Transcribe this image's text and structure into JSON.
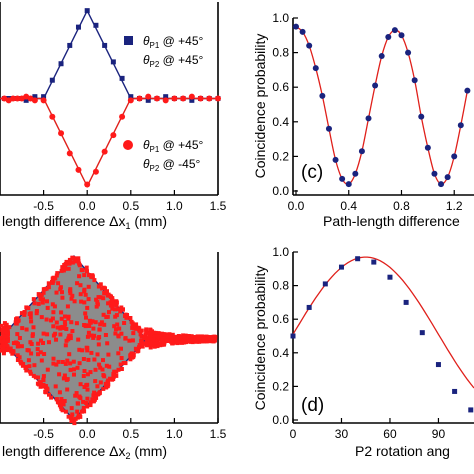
{
  "chart_data": [
    {
      "id": "a",
      "type": "scatter",
      "xlabel": "Path-length difference Δx₁ (mm)",
      "xlabel_visible": "length difference Δx₁ (mm)",
      "xlim": [
        -1.0,
        1.5
      ],
      "ylim": [
        0,
        1.0
      ],
      "xticks": [
        "-0.5",
        "0.0",
        "0.5",
        "1.0",
        "1.5"
      ],
      "legend": [
        {
          "marker": "square",
          "color": "#1a237e",
          "label_line1": "θP1 @ +45°",
          "label_line2": "θP2 @ +45°"
        },
        {
          "marker": "circle",
          "color": "#ff1a1a",
          "label_line1": "θP1 @ +45°",
          "label_line2": "θP2 @ -45°"
        }
      ],
      "series": [
        {
          "name": "θP1 @ +45°, θP2 @ +45°",
          "color": "#1a237e",
          "marker": "square",
          "x": [
            -0.95,
            -0.9,
            -0.85,
            -0.8,
            -0.75,
            -0.7,
            -0.65,
            -0.6,
            -0.5,
            -0.4,
            -0.3,
            -0.2,
            -0.1,
            0.0,
            0.1,
            0.2,
            0.3,
            0.4,
            0.5,
            0.6,
            0.7,
            0.8,
            0.9,
            1.0,
            1.1,
            1.2,
            1.3,
            1.4,
            1.5
          ],
          "y": [
            0.5,
            0.5,
            0.5,
            0.5,
            0.5,
            0.49,
            0.5,
            0.51,
            0.51,
            0.6,
            0.69,
            0.79,
            0.89,
            0.98,
            0.9,
            0.79,
            0.7,
            0.61,
            0.51,
            0.5,
            0.49,
            0.5,
            0.51,
            0.5,
            0.5,
            0.49,
            0.5,
            0.5,
            0.5
          ]
        },
        {
          "name": "θP1 @ +45°, θP2 @ -45°",
          "color": "#ff1a1a",
          "marker": "circle",
          "x": [
            -0.95,
            -0.9,
            -0.85,
            -0.8,
            -0.75,
            -0.7,
            -0.65,
            -0.6,
            -0.5,
            -0.4,
            -0.3,
            -0.2,
            -0.1,
            0.0,
            0.1,
            0.2,
            0.3,
            0.4,
            0.5,
            0.6,
            0.7,
            0.8,
            0.9,
            1.0,
            1.1,
            1.2,
            1.3,
            1.4,
            1.5
          ],
          "y": [
            0.5,
            0.49,
            0.5,
            0.5,
            0.5,
            0.51,
            0.5,
            0.49,
            0.49,
            0.4,
            0.31,
            0.2,
            0.11,
            0.03,
            0.1,
            0.21,
            0.3,
            0.4,
            0.49,
            0.5,
            0.51,
            0.5,
            0.49,
            0.5,
            0.5,
            0.51,
            0.5,
            0.5,
            0.5
          ]
        }
      ]
    },
    {
      "id": "c",
      "type": "scatter",
      "panel_label": "(c)",
      "xlabel": "Path-length difference",
      "ylabel": "Coincidence probability",
      "xlim": [
        0.0,
        1.35
      ],
      "ylim": [
        0,
        1.0
      ],
      "xticks": [
        "0.0",
        "0.4",
        "0.8",
        "1.2",
        "1."
      ],
      "yticks": [
        "0.0",
        "0.2",
        "0.4",
        "0.6",
        "0.8",
        "1.0"
      ],
      "series": [
        {
          "name": "data",
          "color": "#1a237e",
          "marker": "circle",
          "x": [
            0.0,
            0.05,
            0.1,
            0.15,
            0.2,
            0.25,
            0.3,
            0.35,
            0.4,
            0.45,
            0.5,
            0.55,
            0.6,
            0.65,
            0.7,
            0.75,
            0.8,
            0.85,
            0.9,
            0.95,
            1.0,
            1.05,
            1.1,
            1.15,
            1.2,
            1.25,
            1.3
          ],
          "y": [
            0.95,
            0.92,
            0.84,
            0.71,
            0.55,
            0.36,
            0.18,
            0.07,
            0.04,
            0.1,
            0.23,
            0.42,
            0.61,
            0.78,
            0.89,
            0.93,
            0.9,
            0.8,
            0.64,
            0.43,
            0.25,
            0.1,
            0.04,
            0.08,
            0.2,
            0.38,
            0.58
          ]
        }
      ]
    },
    {
      "id": "b",
      "type": "scatter",
      "xlabel": "Path-length difference Δx₂ (mm)",
      "xlabel_visible": "length difference Δx₂ (mm)",
      "xlim": [
        -1.0,
        1.5
      ],
      "ylim": [
        0,
        1.0
      ],
      "xticks": [
        "-0.5",
        "0.0",
        "0.5",
        "1.0",
        "1.5"
      ],
      "fill_color": "#8c8c8c",
      "series": [
        {
          "name": "red points",
          "color": "#ff1a1a",
          "marker": "square"
        }
      ]
    },
    {
      "id": "d",
      "type": "scatter",
      "panel_label": "(d)",
      "xlabel": "P2 rotation ang",
      "ylabel": "Coincidence probability",
      "xlim": [
        0,
        112
      ],
      "ylim": [
        0,
        1.0
      ],
      "xticks": [
        "0",
        "30",
        "60",
        "90"
      ],
      "yticks": [
        "0.0",
        "0.2",
        "0.4",
        "0.6",
        "0.8",
        "1.0"
      ],
      "series": [
        {
          "name": "data",
          "color": "#1a237e",
          "marker": "square",
          "x": [
            0,
            10,
            20,
            30,
            40,
            50,
            60,
            70,
            80,
            90,
            100,
            110
          ],
          "y": [
            0.5,
            0.67,
            0.81,
            0.91,
            0.96,
            0.94,
            0.85,
            0.7,
            0.52,
            0.33,
            0.17,
            0.06
          ]
        }
      ]
    }
  ]
}
